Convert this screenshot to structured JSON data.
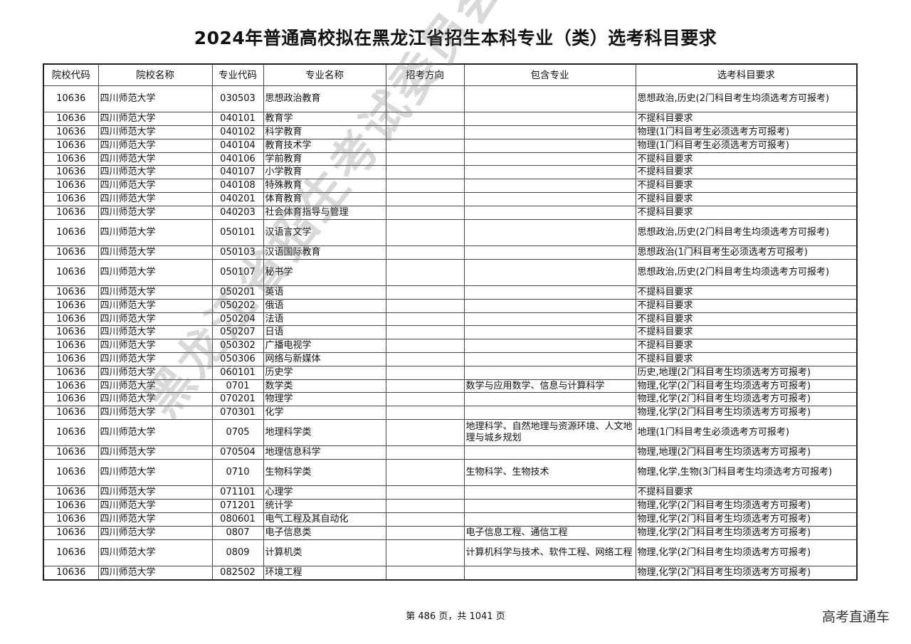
{
  "title": "2024年普通高校拟在黑龙江省招生本科专业（类）选考科目要求",
  "headers": [
    "院校代码",
    "院校名称",
    "专业代码",
    "专业名称",
    "招考方向",
    "包含专业",
    "选考科目要求"
  ],
  "rows": [
    [
      "10636",
      "四川师范大学",
      "030503",
      "思想政治教育",
      "",
      "",
      "思想政治,历史(2门科目考生均须选考方可报考)"
    ],
    [
      "10636",
      "四川师范大学",
      "040101",
      "教育学",
      "",
      "",
      "不提科目要求"
    ],
    [
      "10636",
      "四川师范大学",
      "040102",
      "科学教育",
      "",
      "",
      "物理(1门科目考生必须选考方可报考)"
    ],
    [
      "10636",
      "四川师范大学",
      "040104",
      "教育技术学",
      "",
      "",
      "物理(1门科目考生必须选考方可报考)"
    ],
    [
      "10636",
      "四川师范大学",
      "040106",
      "学前教育",
      "",
      "",
      "不提科目要求"
    ],
    [
      "10636",
      "四川师范大学",
      "040107",
      "小学教育",
      "",
      "",
      "不提科目要求"
    ],
    [
      "10636",
      "四川师范大学",
      "040108",
      "特殊教育",
      "",
      "",
      "不提科目要求"
    ],
    [
      "10636",
      "四川师范大学",
      "040201",
      "体育教育",
      "",
      "",
      "不提科目要求"
    ],
    [
      "10636",
      "四川师范大学",
      "040203",
      "社会体育指导与管理",
      "",
      "",
      "不提科目要求"
    ],
    [
      "10636",
      "四川师范大学",
      "050101",
      "汉语言文学",
      "",
      "",
      "思想政治,历史(2门科目考生均须选考方可报考)"
    ],
    [
      "10636",
      "四川师范大学",
      "050103",
      "汉语国际教育",
      "",
      "",
      "思想政治(1门科目考生必须选考方可报考)"
    ],
    [
      "10636",
      "四川师范大学",
      "050107",
      "秘书学",
      "",
      "",
      "思想政治,历史(2门科目考生均须选考方可报考)"
    ],
    [
      "10636",
      "四川师范大学",
      "050201",
      "英语",
      "",
      "",
      "不提科目要求"
    ],
    [
      "10636",
      "四川师范大学",
      "050202",
      "俄语",
      "",
      "",
      "不提科目要求"
    ],
    [
      "10636",
      "四川师范大学",
      "050204",
      "法语",
      "",
      "",
      "不提科目要求"
    ],
    [
      "10636",
      "四川师范大学",
      "050207",
      "日语",
      "",
      "",
      "不提科目要求"
    ],
    [
      "10636",
      "四川师范大学",
      "050302",
      "广播电视学",
      "",
      "",
      "不提科目要求"
    ],
    [
      "10636",
      "四川师范大学",
      "050306",
      "网络与新媒体",
      "",
      "",
      "不提科目要求"
    ],
    [
      "10636",
      "四川师范大学",
      "060101",
      "历史学",
      "",
      "",
      "历史,地理(2门科目考生均须选考方可报考)"
    ],
    [
      "10636",
      "四川师范大学",
      "0701",
      "数学类",
      "",
      "数学与应用数学、信息与计算科学",
      "物理,化学(2门科目考生均须选考方可报考)"
    ],
    [
      "10636",
      "四川师范大学",
      "070201",
      "物理学",
      "",
      "",
      "物理,化学(2门科目考生均须选考方可报考)"
    ],
    [
      "10636",
      "四川师范大学",
      "070301",
      "化学",
      "",
      "",
      "物理,化学(2门科目考生均须选考方可报考)"
    ],
    [
      "10636",
      "四川师范大学",
      "0705",
      "地理科学类",
      "",
      "地理科学、自然地理与资源环境、人文地理与城乡规划",
      "地理(1门科目考生必须选考方可报考)"
    ],
    [
      "10636",
      "四川师范大学",
      "070504",
      "地理信息科学",
      "",
      "",
      "物理,地理(2门科目考生均须选考方可报考)"
    ],
    [
      "10636",
      "四川师范大学",
      "0710",
      "生物科学类",
      "",
      "生物科学、生物技术",
      "物理,化学,生物(3门科目考生均须选考方可报考)"
    ],
    [
      "10636",
      "四川师范大学",
      "071101",
      "心理学",
      "",
      "",
      "不提科目要求"
    ],
    [
      "10636",
      "四川师范大学",
      "071201",
      "统计学",
      "",
      "",
      "物理,化学(2门科目考生均须选考方可报考)"
    ],
    [
      "10636",
      "四川师范大学",
      "080601",
      "电气工程及其自动化",
      "",
      "",
      "物理,化学(2门科目考生均须选考方可报考)"
    ],
    [
      "10636",
      "四川师范大学",
      "0807",
      "电子信息类",
      "",
      "电子信息工程、通信工程",
      "物理,化学(2门科目考生均须选考方可报考)"
    ],
    [
      "10636",
      "四川师范大学",
      "0809",
      "计算机类",
      "",
      "计算机科学与技术、软件工程、网络工程",
      "物理,化学(2门科目考生均须选考方可报考)"
    ],
    [
      "10636",
      "四川师范大学",
      "082502",
      "环境工程",
      "",
      "",
      "物理,化学(2门科目考生均须选考方可报考)"
    ]
  ],
  "watermark": "黑龙江省招生考试委员会办公室",
  "footer": "第 486 页，共 1041 页",
  "brand": "高考直通车"
}
